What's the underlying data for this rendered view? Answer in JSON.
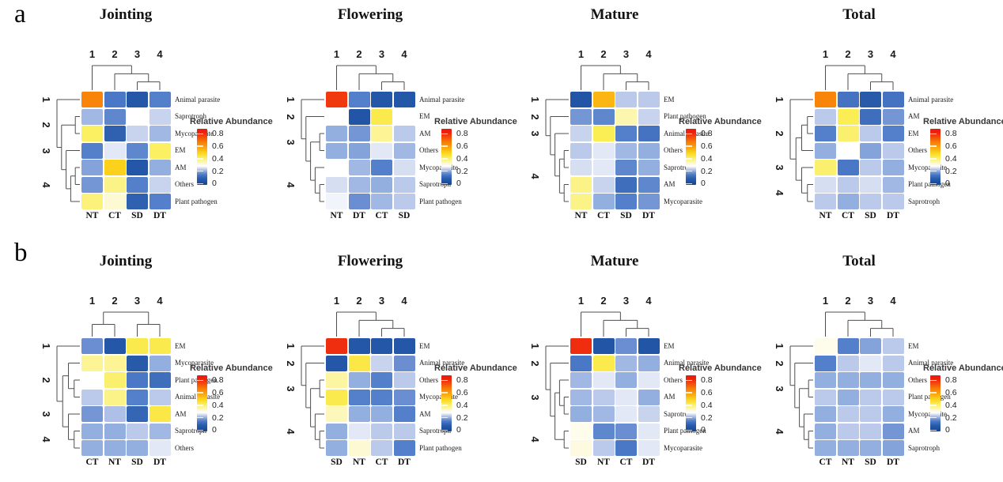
{
  "figure": {
    "panel_labels": [
      "a",
      "b"
    ]
  },
  "legend": {
    "title": "Relative Abundance",
    "ticks": [
      0.8,
      0.6,
      0.4,
      0.2,
      0
    ]
  },
  "colormap": [
    [
      0.0,
      "#17499B"
    ],
    [
      0.08,
      "#2A5CAC"
    ],
    [
      0.14,
      "#4A77C6"
    ],
    [
      0.18,
      "#7496D4"
    ],
    [
      0.2,
      "#93AFE0"
    ],
    [
      0.23,
      "#BBC9EA"
    ],
    [
      0.26,
      "#E3E8F6"
    ],
    [
      0.28,
      "#FFFFFF"
    ],
    [
      0.31,
      "#FDFAE0"
    ],
    [
      0.35,
      "#FCF6AE"
    ],
    [
      0.42,
      "#FBEE55"
    ],
    [
      0.5,
      "#FCD11B"
    ],
    [
      0.58,
      "#FAA60E"
    ],
    [
      0.66,
      "#F88008"
    ],
    [
      0.74,
      "#F3500B"
    ],
    [
      0.82,
      "#EC2310"
    ],
    [
      0.9,
      "#E51509"
    ]
  ],
  "chart_data": [
    {
      "type": "heatmap",
      "panel": "a",
      "title": "Jointing",
      "columns": [
        "NT",
        "CT",
        "SD",
        "DT"
      ],
      "col_cluster_labels": [
        "1",
        "2",
        "3",
        "4"
      ],
      "row_cluster_labels": [
        "1",
        "2",
        "3",
        "4"
      ],
      "row_cluster_spans": [
        [
          0,
          0
        ],
        [
          1,
          2
        ],
        [
          3,
          3
        ],
        [
          4,
          6
        ]
      ],
      "row_labels": [
        "Animal parasite",
        "Saprotroph",
        "Mycoparasite",
        "EM",
        "AM",
        "Others",
        "Plant pathogen"
      ],
      "values": [
        [
          0.65,
          0.14,
          0.06,
          0.15
        ],
        [
          0.21,
          0.16,
          0.28,
          0.24
        ],
        [
          0.41,
          0.09,
          0.24,
          0.21
        ],
        [
          0.15,
          0.26,
          0.16,
          0.41
        ],
        [
          0.19,
          0.5,
          0.06,
          0.2
        ],
        [
          0.18,
          0.38,
          0.15,
          0.24
        ],
        [
          0.39,
          0.32,
          0.09,
          0.15
        ]
      ],
      "col_dendrogram": [
        0,
        [
          1,
          [
            2,
            3
          ]
        ]
      ],
      "row_dendrogram": [
        0,
        [
          [
            1,
            2
          ],
          [
            3,
            [
              [
                4,
                5
              ],
              6
            ]
          ]
        ]
      ]
    },
    {
      "type": "heatmap",
      "panel": "a",
      "title": "Flowering",
      "columns": [
        "NT",
        "DT",
        "CT",
        "SD"
      ],
      "col_cluster_labels": [
        "1",
        "2",
        "3",
        "4"
      ],
      "row_cluster_labels": [
        "1",
        "2",
        "3",
        "4"
      ],
      "row_cluster_spans": [
        [
          0,
          0
        ],
        [
          1,
          1
        ],
        [
          2,
          3
        ],
        [
          4,
          6
        ]
      ],
      "row_labels": [
        "Animal parasite",
        "EM",
        "AM",
        "Others",
        "Mycoparasite",
        "Saprotroph",
        "Plant pathogen"
      ],
      "values": [
        [
          0.78,
          0.15,
          0.06,
          0.06
        ],
        [
          0.28,
          0.05,
          0.43,
          0.28
        ],
        [
          0.2,
          0.18,
          0.37,
          0.23
        ],
        [
          0.2,
          0.19,
          0.26,
          0.21
        ],
        [
          0.28,
          0.21,
          0.15,
          0.25
        ],
        [
          0.25,
          0.21,
          0.2,
          0.23
        ],
        [
          0.27,
          0.17,
          0.21,
          0.23
        ]
      ],
      "col_dendrogram": [
        0,
        [
          1,
          [
            2,
            3
          ]
        ]
      ],
      "row_dendrogram": [
        0,
        [
          1,
          [
            [
              2,
              3
            ],
            [
              4,
              [
                5,
                6
              ]
            ]
          ]
        ]
      ]
    },
    {
      "type": "heatmap",
      "panel": "a",
      "title": "Mature",
      "columns": [
        "NT",
        "CT",
        "SD",
        "DT"
      ],
      "col_cluster_labels": [
        "1",
        "2",
        "3",
        "4"
      ],
      "row_cluster_labels": [
        "1",
        "2",
        "3",
        "4"
      ],
      "row_cluster_spans": [
        [
          0,
          0
        ],
        [
          1,
          1
        ],
        [
          2,
          2
        ],
        [
          3,
          6
        ]
      ],
      "row_labels": [
        "EM",
        "Plant pathogen",
        "Animal parasite",
        "Others",
        "Saprotroph",
        "AM",
        "Mycoparasite"
      ],
      "values": [
        [
          0.05,
          0.55,
          0.23,
          0.23
        ],
        [
          0.18,
          0.16,
          0.35,
          0.24
        ],
        [
          0.24,
          0.42,
          0.15,
          0.13
        ],
        [
          0.23,
          0.26,
          0.21,
          0.2
        ],
        [
          0.25,
          0.26,
          0.16,
          0.2
        ],
        [
          0.38,
          0.24,
          0.12,
          0.16
        ],
        [
          0.38,
          0.2,
          0.15,
          0.18
        ]
      ],
      "col_dendrogram": [
        0,
        [
          1,
          [
            2,
            3
          ]
        ]
      ],
      "row_dendrogram": [
        0,
        [
          1,
          [
            2,
            [
              [
                3,
                4
              ],
              [
                5,
                6
              ]
            ]
          ]
        ]
      ]
    },
    {
      "type": "heatmap",
      "panel": "a",
      "title": "Total",
      "columns": [
        "NT",
        "CT",
        "SD",
        "DT"
      ],
      "col_cluster_labels": [
        "1",
        "2",
        "3",
        "4"
      ],
      "row_cluster_labels": [
        "1",
        "2",
        "3",
        "4"
      ],
      "row_cluster_spans": [
        [
          0,
          0
        ],
        [
          1,
          3
        ],
        [
          4,
          4
        ],
        [
          5,
          6
        ]
      ],
      "row_labels": [
        "Animal parasite",
        "AM",
        "EM",
        "Others",
        "Mycoparasite",
        "Plant pathogen",
        "Saprotroph"
      ],
      "values": [
        [
          0.65,
          0.13,
          0.07,
          0.13
        ],
        [
          0.23,
          0.42,
          0.12,
          0.18
        ],
        [
          0.15,
          0.4,
          0.23,
          0.15
        ],
        [
          0.2,
          0.28,
          0.19,
          0.23
        ],
        [
          0.4,
          0.14,
          0.23,
          0.2
        ],
        [
          0.25,
          0.23,
          0.25,
          0.21
        ],
        [
          0.23,
          0.2,
          0.23,
          0.23
        ]
      ],
      "col_dendrogram": [
        0,
        [
          1,
          [
            2,
            3
          ]
        ]
      ],
      "row_dendrogram": [
        0,
        [
          [
            [
              1,
              2
            ],
            3
          ],
          [
            4,
            [
              5,
              6
            ]
          ]
        ]
      ]
    },
    {
      "type": "heatmap",
      "panel": "b",
      "title": "Jointing",
      "columns": [
        "CT",
        "NT",
        "SD",
        "DT"
      ],
      "col_cluster_labels": [
        "1",
        "2",
        "3",
        "4"
      ],
      "row_cluster_labels": [
        "1",
        "2",
        "3",
        "4"
      ],
      "row_cluster_spans": [
        [
          0,
          0
        ],
        [
          1,
          3
        ],
        [
          4,
          4
        ],
        [
          5,
          6
        ]
      ],
      "row_labels": [
        "EM",
        "Mycoparasite",
        "Plant pathogen",
        "Animal parasite",
        "AM",
        "Saprotroph",
        "Others"
      ],
      "values": [
        [
          0.17,
          0.06,
          0.43,
          0.43
        ],
        [
          0.37,
          0.37,
          0.07,
          0.2
        ],
        [
          0.28,
          0.4,
          0.14,
          0.12
        ],
        [
          0.23,
          0.38,
          0.15,
          0.23
        ],
        [
          0.18,
          0.22,
          0.1,
          0.44
        ],
        [
          0.2,
          0.2,
          0.23,
          0.21
        ],
        [
          0.2,
          0.2,
          0.2,
          0.26
        ]
      ],
      "col_dendrogram": [
        [
          0,
          1
        ],
        [
          2,
          3
        ]
      ],
      "row_dendrogram": [
        0,
        [
          [
            1,
            [
              2,
              3
            ]
          ],
          [
            4,
            [
              5,
              6
            ]
          ]
        ]
      ]
    },
    {
      "type": "heatmap",
      "panel": "b",
      "title": "Flowering",
      "columns": [
        "SD",
        "NT",
        "CT",
        "DT"
      ],
      "col_cluster_labels": [
        "1",
        "2",
        "3",
        "4"
      ],
      "row_cluster_labels": [
        "1",
        "2",
        "3",
        "4"
      ],
      "row_cluster_spans": [
        [
          0,
          0
        ],
        [
          1,
          1
        ],
        [
          2,
          3
        ],
        [
          4,
          6
        ]
      ],
      "row_labels": [
        "EM",
        "Animal parasite",
        "Others",
        "Mycoparasite",
        "AM",
        "Saprotroph",
        "Plant pathogen"
      ],
      "values": [
        [
          0.8,
          0.06,
          0.06,
          0.06
        ],
        [
          0.06,
          0.44,
          0.24,
          0.17
        ],
        [
          0.36,
          0.2,
          0.15,
          0.23
        ],
        [
          0.43,
          0.15,
          0.15,
          0.17
        ],
        [
          0.34,
          0.2,
          0.2,
          0.15
        ],
        [
          0.2,
          0.26,
          0.23,
          0.23
        ],
        [
          0.2,
          0.32,
          0.23,
          0.15
        ]
      ],
      "col_dendrogram": [
        0,
        [
          1,
          [
            2,
            3
          ]
        ]
      ],
      "row_dendrogram": [
        0,
        [
          1,
          [
            [
              2,
              3
            ],
            [
              4,
              [
                5,
                6
              ]
            ]
          ]
        ]
      ]
    },
    {
      "type": "heatmap",
      "panel": "b",
      "title": "Mature",
      "columns": [
        "SD",
        "NT",
        "CT",
        "DT"
      ],
      "col_cluster_labels": [
        "1",
        "2",
        "3",
        "4"
      ],
      "row_cluster_labels": [
        "1",
        "2",
        "3",
        "4"
      ],
      "row_cluster_spans": [
        [
          0,
          0
        ],
        [
          1,
          1
        ],
        [
          2,
          4
        ],
        [
          5,
          6
        ]
      ],
      "row_labels": [
        "EM",
        "Animal parasite",
        "Others",
        "AM",
        "Saprotroph",
        "Plant pathogen",
        "Mycoparasite"
      ],
      "values": [
        [
          0.8,
          0.05,
          0.17,
          0.05
        ],
        [
          0.14,
          0.43,
          0.21,
          0.2
        ],
        [
          0.21,
          0.26,
          0.2,
          0.26
        ],
        [
          0.21,
          0.23,
          0.26,
          0.2
        ],
        [
          0.2,
          0.21,
          0.26,
          0.24
        ],
        [
          0.3,
          0.16,
          0.17,
          0.26
        ],
        [
          0.31,
          0.23,
          0.14,
          0.26
        ]
      ],
      "col_dendrogram": [
        0,
        [
          1,
          [
            2,
            3
          ]
        ]
      ],
      "row_dendrogram": [
        0,
        [
          1,
          [
            [
              2,
              [
                3,
                4
              ]
            ],
            [
              5,
              6
            ]
          ]
        ]
      ]
    },
    {
      "type": "heatmap",
      "panel": "b",
      "title": "Total",
      "columns": [
        "CT",
        "NT",
        "SD",
        "DT"
      ],
      "col_cluster_labels": [
        "1",
        "2",
        "3",
        "4"
      ],
      "row_cluster_labels": [
        "1",
        "2",
        "3",
        "4"
      ],
      "row_cluster_spans": [
        [
          0,
          0
        ],
        [
          1,
          1
        ],
        [
          2,
          3
        ],
        [
          4,
          6
        ]
      ],
      "row_labels": [
        "EM",
        "Animal parasite",
        "Others",
        "Plant pathogen",
        "Mycoparasite",
        "AM",
        "Saprotroph"
      ],
      "values": [
        [
          0.3,
          0.15,
          0.19,
          0.23
        ],
        [
          0.15,
          0.23,
          0.26,
          0.23
        ],
        [
          0.2,
          0.2,
          0.2,
          0.2
        ],
        [
          0.23,
          0.2,
          0.23,
          0.23
        ],
        [
          0.2,
          0.23,
          0.23,
          0.2
        ],
        [
          0.2,
          0.23,
          0.23,
          0.18
        ],
        [
          0.2,
          0.2,
          0.2,
          0.19
        ]
      ],
      "col_dendrogram": [
        0,
        [
          1,
          [
            2,
            3
          ]
        ]
      ],
      "row_dendrogram": [
        0,
        [
          1,
          [
            [
              2,
              3
            ],
            [
              4,
              [
                5,
                6
              ]
            ]
          ]
        ]
      ]
    }
  ]
}
